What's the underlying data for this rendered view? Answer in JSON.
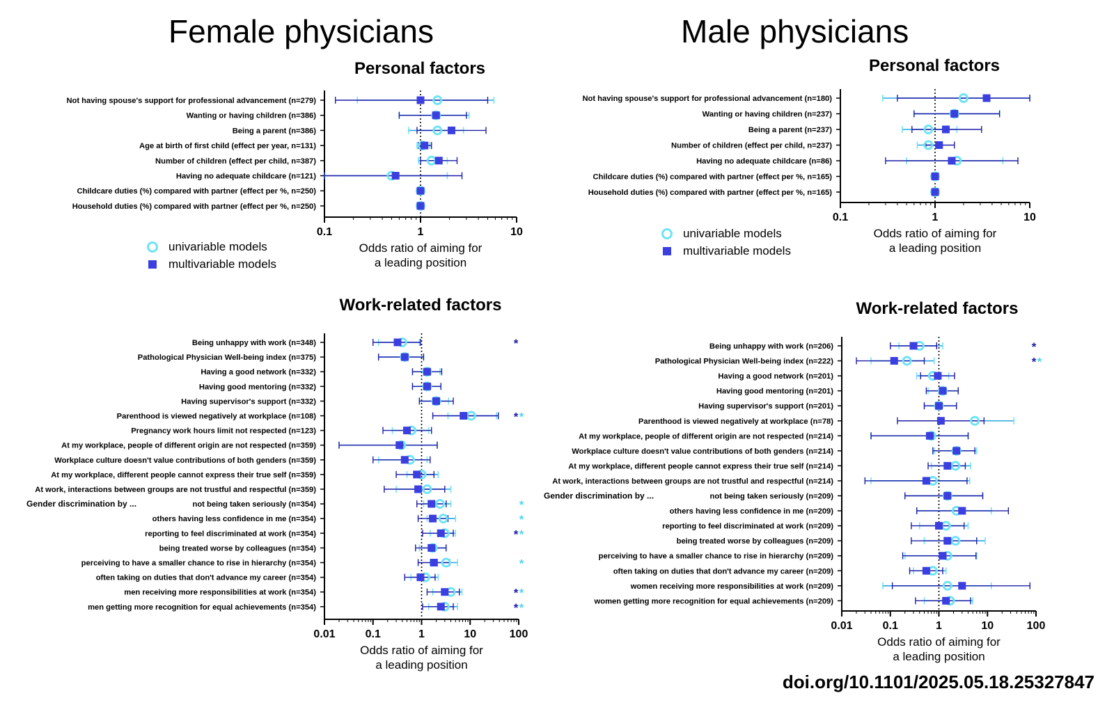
{
  "titles": {
    "female": "Female physicians",
    "male": "Male physicians"
  },
  "legend": {
    "univariable": "univariable models",
    "multivariable": "multivariable models"
  },
  "doi": "doi.org/10.1101/2025.05.18.25327847",
  "colors": {
    "uni": "#6fe3f5",
    "multi": "#3b3fe0",
    "uni_ci": "#29a3e0",
    "multi_ci": "#1c1ca8",
    "star_multi": "#1c1ca8",
    "star_uni": "#52d5f0"
  },
  "chart_data": [
    {
      "id": "female-personal",
      "type": "forest",
      "title": "Personal factors",
      "xlabel": [
        "Odds ratio of aiming for",
        "a leading position"
      ],
      "xscale": "log",
      "xlim": [
        0.1,
        10
      ],
      "ticks": [
        0.1,
        1,
        10
      ],
      "tick_labels": [
        "0.1",
        "1",
        "10"
      ],
      "rows": [
        {
          "label": "Not having spouse's support for professional advancement (n=279)",
          "uni": [
            1.5,
            0.22,
            5.8
          ],
          "multi": [
            1.0,
            0.13,
            5.0
          ]
        },
        {
          "label": "Wanting or having children (n=386)",
          "uni": [
            1.45,
            0.6,
            3.2
          ],
          "multi": [
            1.45,
            0.6,
            3.0
          ]
        },
        {
          "label": "Being a parent (n=386)",
          "uni": [
            1.5,
            0.75,
            2.8
          ],
          "multi": [
            2.1,
            0.92,
            4.8
          ]
        },
        {
          "label": "Age at birth of first child (effect per year, n=131)",
          "uni": [
            1.05,
            0.92,
            1.25
          ],
          "multi": [
            1.1,
            0.95,
            1.3
          ]
        },
        {
          "label": "Number of children (effect per child, n=387)",
          "uni": [
            1.3,
            0.95,
            1.9
          ],
          "multi": [
            1.55,
            1.0,
            2.4
          ]
        },
        {
          "label": "Having no adequate childcare (n=121)",
          "uni": [
            0.5,
            0.1,
            1.9
          ],
          "multi": [
            0.55,
            0.1,
            2.7
          ]
        },
        {
          "label": "Childcare duties (%) compared with partner (effect per %, n=250)",
          "uni": [
            1.0,
            0.98,
            1.02
          ],
          "multi": [
            1.0,
            0.98,
            1.02
          ]
        },
        {
          "label": "Household duties (%) compared with partner (effect per %, n=250)",
          "uni": [
            1.0,
            0.98,
            1.02
          ],
          "multi": [
            1.0,
            0.98,
            1.02
          ]
        }
      ]
    },
    {
      "id": "male-personal",
      "type": "forest",
      "title": "Personal factors",
      "xlabel": [
        "Odds ratio of aiming for",
        "a leading position"
      ],
      "xscale": "log",
      "xlim": [
        0.1,
        10
      ],
      "ticks": [
        0.1,
        1,
        10
      ],
      "tick_labels": [
        "0.1",
        "1",
        "10"
      ],
      "rows": [
        {
          "label": "Not having spouse's support for professional advancement (n=180)",
          "uni": [
            2.0,
            0.28,
            10
          ],
          "multi": [
            3.5,
            0.4,
            10
          ]
        },
        {
          "label": "Wanting or having children (n=237)",
          "uni": [
            1.6,
            0.6,
            4.8
          ],
          "multi": [
            1.6,
            0.6,
            4.8
          ]
        },
        {
          "label": "Being a parent (n=237)",
          "uni": [
            0.85,
            0.45,
            1.7
          ],
          "multi": [
            1.3,
            0.57,
            3.1
          ]
        },
        {
          "label": "Number of children (effect per child, n=237)",
          "uni": [
            0.85,
            0.65,
            1.2
          ],
          "multi": [
            1.1,
            0.8,
            1.6
          ]
        },
        {
          "label": "Having no adequate childcare (n=86)",
          "uni": [
            1.7,
            0.5,
            5.2
          ],
          "multi": [
            1.5,
            0.3,
            7.5
          ]
        },
        {
          "label": "Childcare duties (%) compared with partner (effect per %, n=165)",
          "uni": [
            1.0,
            0.98,
            1.02
          ],
          "multi": [
            1.0,
            0.98,
            1.02
          ]
        },
        {
          "label": "Household duties (%) compared with partner (effect per %, n=165)",
          "uni": [
            1.0,
            0.98,
            1.02
          ],
          "multi": [
            1.0,
            0.98,
            1.02
          ]
        }
      ]
    },
    {
      "id": "female-work",
      "type": "forest",
      "title": "Work-related factors",
      "xlabel": [
        "Odds ratio of aiming for",
        "a leading position"
      ],
      "xscale": "log",
      "xlim": [
        0.01,
        100
      ],
      "ticks": [
        0.01,
        0.1,
        1,
        10,
        100
      ],
      "tick_labels": [
        "0.01",
        "0.1",
        "1",
        "10",
        "100"
      ],
      "group_label": "Gender discrimination by ...",
      "rows": [
        {
          "label": "Being unhappy with work (n=348)",
          "uni": [
            0.4,
            0.13,
            0.9
          ],
          "multi": [
            0.32,
            0.1,
            0.95
          ],
          "stars": "multi"
        },
        {
          "label": "Pathological Physician Well-being index (n=375)",
          "uni": [
            0.45,
            0.13,
            1.1
          ],
          "multi": [
            0.45,
            0.13,
            1.1
          ]
        },
        {
          "label": "Having a good network (n=332)",
          "uni": [
            1.3,
            0.65,
            2.4
          ],
          "multi": [
            1.3,
            0.65,
            2.6
          ]
        },
        {
          "label": "Having good mentoring (n=332)",
          "uni": [
            1.3,
            0.65,
            2.5
          ],
          "multi": [
            1.3,
            0.65,
            2.5
          ]
        },
        {
          "label": "Having supervisor's support (n=332)",
          "uni": [
            2.0,
            0.9,
            3.6
          ],
          "multi": [
            2.0,
            0.9,
            4.5
          ]
        },
        {
          "label": "Parenthood is viewed negatively at workplace (n=108)",
          "uni": [
            10.5,
            3.5,
            35
          ],
          "multi": [
            7.3,
            1.7,
            38
          ],
          "stars": "both"
        },
        {
          "label": "Pregnancy work hours limit not respected (n=123)",
          "uni": [
            0.62,
            0.25,
            1.4
          ],
          "multi": [
            0.5,
            0.16,
            1.6
          ]
        },
        {
          "label": "At my workplace, people of different origin are not respected (n=359)",
          "uni": [
            0.38,
            0.02,
            2.1
          ],
          "multi": [
            0.35,
            0.02,
            2.1
          ]
        },
        {
          "label": "Workplace culture doesn't value contributions of both genders (n=359)",
          "uni": [
            0.58,
            0.13,
            1.3
          ],
          "multi": [
            0.45,
            0.1,
            1.5
          ]
        },
        {
          "label": "At my workplace, different people cannot express their true self (n=359)",
          "uni": [
            1.0,
            0.5,
            2.2
          ],
          "multi": [
            0.8,
            0.3,
            1.8
          ]
        },
        {
          "label": "At work, interactions between groups are not trustful and respectful (n=359)",
          "uni": [
            1.3,
            0.3,
            4.0
          ],
          "multi": [
            0.85,
            0.17,
            3.0
          ]
        },
        {
          "label": "not being taken seriously (n=354)",
          "uni": [
            2.4,
            1.1,
            4.0
          ],
          "multi": [
            1.6,
            0.8,
            3.2
          ],
          "stars": "uni"
        },
        {
          "label": "others having less confidence in me (n=354)",
          "uni": [
            2.8,
            1.3,
            5.0
          ],
          "multi": [
            1.7,
            0.85,
            3.5
          ],
          "stars": "uni"
        },
        {
          "label": "reporting to feel discriminated at work (n=354)",
          "uni": [
            3.0,
            1.5,
            5.0
          ],
          "multi": [
            2.5,
            1.05,
            4.5
          ],
          "stars": "both"
        },
        {
          "label": "being treated worse by colleagues (n=354)",
          "uni": [
            1.7,
            0.9,
            3.2
          ],
          "multi": [
            1.6,
            0.75,
            3.2
          ]
        },
        {
          "label": "perceiving to have a smaller chance to rise in hierarchy (n=354)",
          "uni": [
            3.2,
            1.5,
            5.5
          ],
          "multi": [
            1.8,
            0.85,
            3.8
          ],
          "stars": "uni"
        },
        {
          "label": "often taking on duties that don't advance my career (n=354)",
          "uni": [
            1.2,
            0.6,
            2.2
          ],
          "multi": [
            0.95,
            0.45,
            1.9
          ]
        },
        {
          "label": "men receiving more responsibilities at work (n=354)",
          "uni": [
            4.0,
            1.7,
            6.8
          ],
          "multi": [
            3.0,
            1.3,
            6.0
          ],
          "stars": "both"
        },
        {
          "label": "men getting more recognition for equal achievements (n=354)",
          "uni": [
            3.0,
            1.4,
            5.5
          ],
          "multi": [
            2.5,
            1.05,
            4.5
          ],
          "stars": "both"
        }
      ],
      "group_start": 11
    },
    {
      "id": "male-work",
      "type": "forest",
      "title": "Work-related factors",
      "xlabel": [
        "Odds ratio of aiming for",
        "a leading position"
      ],
      "xscale": "log",
      "xlim": [
        0.01,
        100
      ],
      "ticks": [
        0.01,
        0.1,
        1,
        10,
        100
      ],
      "tick_labels": [
        "0.01",
        "0.1",
        "1",
        "10",
        "100"
      ],
      "group_label": "Gender discrimination by ...",
      "rows": [
        {
          "label": "Being unhappy with work (n=206)",
          "uni": [
            0.4,
            0.15,
            1.2
          ],
          "multi": [
            0.3,
            0.1,
            0.9
          ],
          "stars": "multi"
        },
        {
          "label": "Pathological Physician Well-being index (n=222)",
          "uni": [
            0.22,
            0.04,
            0.8
          ],
          "multi": [
            0.12,
            0.02,
            0.5
          ],
          "stars": "both"
        },
        {
          "label": "Having a good network (n=201)",
          "uni": [
            0.75,
            0.35,
            1.6
          ],
          "multi": [
            0.95,
            0.42,
            2.1
          ]
        },
        {
          "label": "Having good mentoring (n=201)",
          "uni": [
            1.2,
            0.6,
            2.5
          ],
          "multi": [
            1.2,
            0.55,
            2.5
          ]
        },
        {
          "label": "Having supervisor's support (n=201)",
          "uni": [
            1.0,
            0.5,
            2.3
          ],
          "multi": [
            1.0,
            0.5,
            2.3
          ]
        },
        {
          "label": "Parenthood is viewed negatively at workplace (n=78)",
          "uni": [
            5.5,
            1.0,
            35
          ],
          "multi": [
            1.1,
            0.14,
            8.5
          ]
        },
        {
          "label": "At my workplace, people of different origin are not respected (n=214)",
          "uni": [
            0.7,
            0.04,
            4.0
          ],
          "multi": [
            0.65,
            0.04,
            4.0
          ]
        },
        {
          "label": "Workplace culture doesn't value contributions of both genders (n=214)",
          "uni": [
            2.3,
            0.8,
            6.0
          ],
          "multi": [
            2.3,
            0.75,
            5.5
          ]
        },
        {
          "label": "At my workplace, different people cannot express their true self (n=214)",
          "uni": [
            2.2,
            0.7,
            4.5
          ],
          "multi": [
            1.5,
            0.6,
            3.5
          ]
        },
        {
          "label": "At work, interactions between groups are not trustful and respectful (n=214)",
          "uni": [
            0.75,
            0.04,
            4.3
          ],
          "multi": [
            0.55,
            0.03,
            3.8
          ]
        },
        {
          "label": "not being taken seriously (n=209)",
          "uni": [
            1.5,
            0.2,
            8.0
          ],
          "multi": [
            1.5,
            0.2,
            8.0
          ]
        },
        {
          "label": "others having less confidence in me (n=209)",
          "uni": [
            2.3,
            0.35,
            12
          ],
          "multi": [
            3.0,
            0.35,
            27
          ]
        },
        {
          "label": "reporting to feel discriminated at work (n=209)",
          "uni": [
            1.4,
            0.4,
            4.0
          ],
          "multi": [
            1.0,
            0.27,
            3.3
          ]
        },
        {
          "label": "being treated worse by colleagues (n=209)",
          "uni": [
            2.2,
            0.5,
            9.0
          ],
          "multi": [
            1.5,
            0.27,
            6.0
          ]
        },
        {
          "label": "perceiving to have a smaller chance to rise in hierarchy (n=209)",
          "uni": [
            1.5,
            0.2,
            6.0
          ],
          "multi": [
            1.2,
            0.18,
            5.8
          ]
        },
        {
          "label": "often taking on duties that don't advance my career (n=209)",
          "uni": [
            0.75,
            0.3,
            1.4
          ],
          "multi": [
            0.55,
            0.25,
            1.2
          ]
        },
        {
          "label": "women receiving more responsibilities at work (n=209)",
          "uni": [
            1.5,
            0.07,
            12
          ],
          "multi": [
            3.0,
            0.11,
            75
          ]
        },
        {
          "label": "women getting more recognition for equal achievements (n=209)",
          "uni": [
            1.7,
            0.5,
            5.0
          ],
          "multi": [
            1.4,
            0.33,
            4.5
          ]
        }
      ],
      "group_start": 10
    }
  ]
}
